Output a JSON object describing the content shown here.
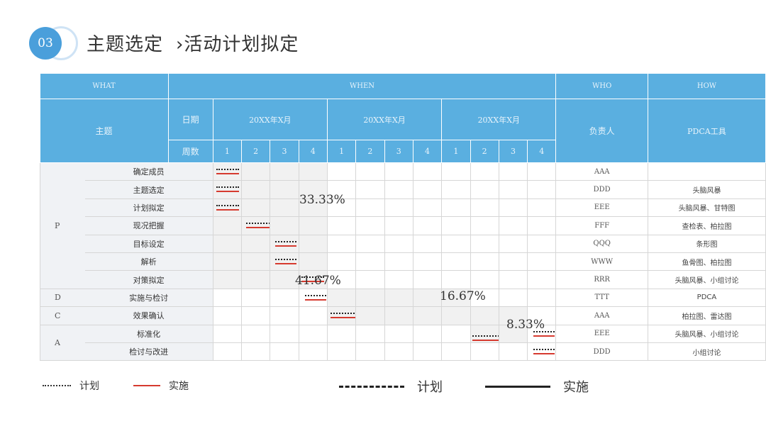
{
  "header": {
    "badge": "03",
    "title": "主题选定",
    "subtitle": "›活动计划拟定"
  },
  "table": {
    "col_what": "WHAT",
    "col_when": "WHEN",
    "col_who": "WHO",
    "col_how": "HOW",
    "theme_label": "主题",
    "date_label": "日期",
    "week_label": "周数",
    "months": [
      "20XX年X月",
      "20XX年X月",
      "20XX年X月"
    ],
    "weeks": [
      "1",
      "2",
      "3",
      "4",
      "1",
      "2",
      "3",
      "4",
      "1",
      "2",
      "3",
      "4"
    ],
    "owner_label": "负责人",
    "tool_label": "PDCA工具",
    "categories": [
      "P",
      "D",
      "C",
      "A"
    ],
    "rows": [
      {
        "task": "确定成员",
        "owner": "AAA",
        "tool": ""
      },
      {
        "task": "主题选定",
        "owner": "DDD",
        "tool": "头脑风暴"
      },
      {
        "task": "计划拟定",
        "owner": "EEE",
        "tool": "头脑风暴、甘特图"
      },
      {
        "task": "现况把握",
        "owner": "FFF",
        "tool": "查检表、柏拉图"
      },
      {
        "task": "目标设定",
        "owner": "QQQ",
        "tool": "条形图"
      },
      {
        "task": "解析",
        "owner": "WWW",
        "tool": "鱼骨图、柏拉图"
      },
      {
        "task": "对策拟定",
        "owner": "RRR",
        "tool": "头脑风暴、小组讨论"
      },
      {
        "task": "实施与检讨",
        "owner": "TTT",
        "tool": "PDCA"
      },
      {
        "task": "效果确认",
        "owner": "AAA",
        "tool": "柏拉图、雷达图"
      },
      {
        "task": "标准化",
        "owner": "EEE",
        "tool": "头脑风暴、小组讨论"
      },
      {
        "task": "检讨与改进",
        "owner": "DDD",
        "tool": "小组讨论"
      }
    ],
    "percentages": [
      "33.33%",
      "41.67%",
      "16.67%",
      "8.33%"
    ]
  },
  "legend": {
    "plan": "计划",
    "actual": "实施",
    "plan_big": "计划",
    "actual_big": "实施"
  },
  "colors": {
    "header_blue": "#5aafe0",
    "badge_blue": "#4a9fdb",
    "actual_red": "#d63a2f"
  }
}
